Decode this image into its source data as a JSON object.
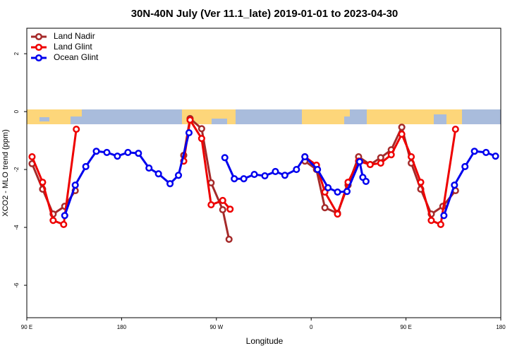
{
  "chart_data": {
    "type": "line",
    "title": "30N-40N July (Ver 11.1_late)   2019-01-01 to 2023-04-30",
    "x_label": "Longitude",
    "y_label": "XCO2 - MLO trend (ppm)",
    "xlim": [
      90,
      540
    ],
    "ylim": [
      -7.12,
      2.88
    ],
    "xticks": [
      {
        "value": 90,
        "label": "90 E"
      },
      180,
      {
        "value": 270,
        "label": "90 W"
      },
      {
        "value": 360,
        "label": "0"
      },
      {
        "value": 450,
        "label": "90 E"
      },
      {
        "value": 540,
        "label": "180"
      }
    ],
    "yticks": [
      -6,
      -4,
      -2,
      0,
      2
    ],
    "legend": "top-left",
    "series": [
      {
        "name": "Land Nadir",
        "color": "#a52a2a",
        "x": [
          95,
          105,
          115,
          126,
          136,
          null,
          239,
          245,
          256,
          265,
          276,
          282,
          null,
          354,
          365,
          373,
          385,
          395,
          405,
          416,
          426,
          436,
          446,
          455,
          464,
          474,
          485,
          497
        ],
        "values": [
          -1.8,
          -2.68,
          -3.54,
          -3.27,
          -2.73,
          null,
          -1.51,
          -0.24,
          -0.59,
          -2.46,
          -3.39,
          -4.41,
          null,
          -1.71,
          -2.0,
          -3.32,
          -3.51,
          -2.54,
          -1.56,
          -1.83,
          -1.59,
          -1.32,
          -0.54,
          -1.78,
          -2.68,
          -3.54,
          -3.27,
          -2.73
        ]
      },
      {
        "name": "Land Glint",
        "color": "#ee0000",
        "x": [
          95,
          105,
          115,
          125,
          137,
          null,
          239,
          245,
          256,
          265,
          276,
          283,
          null,
          354,
          365,
          373,
          385,
          395,
          405,
          416,
          426,
          436,
          446,
          455,
          464,
          474,
          483,
          497
        ],
        "values": [
          -1.56,
          -2.44,
          -3.76,
          -3.9,
          -0.61,
          null,
          -1.71,
          -0.29,
          -0.93,
          -3.22,
          -3.07,
          -3.37,
          null,
          -1.56,
          -1.85,
          -2.78,
          -3.54,
          -2.44,
          -1.71,
          -1.83,
          -1.78,
          -1.49,
          -0.78,
          -1.56,
          -2.44,
          -3.76,
          -3.9,
          -0.61
        ]
      },
      {
        "name": "Ocean Glint",
        "color": "#0000ee",
        "x": [
          126,
          136,
          146,
          156,
          166,
          176,
          186,
          196,
          206,
          215,
          226,
          234,
          244,
          null,
          278,
          287,
          296,
          306,
          316,
          326,
          335,
          346,
          354,
          366,
          376,
          385,
          394,
          406,
          409,
          412,
          null,
          486,
          496,
          506,
          515,
          526,
          535
        ],
        "values": [
          -3.59,
          -2.54,
          -1.9,
          -1.37,
          -1.41,
          -1.54,
          -1.41,
          -1.44,
          -1.95,
          -2.15,
          -2.49,
          -2.2,
          -0.73,
          null,
          -1.59,
          -2.32,
          -2.32,
          -2.17,
          -2.22,
          -2.07,
          -2.2,
          -2.0,
          -1.56,
          -2.0,
          -2.63,
          -2.78,
          -2.76,
          -1.73,
          -2.27,
          -2.41,
          null,
          -3.59,
          -2.54,
          -1.9,
          -1.37,
          -1.41,
          -1.54
        ]
      }
    ]
  }
}
